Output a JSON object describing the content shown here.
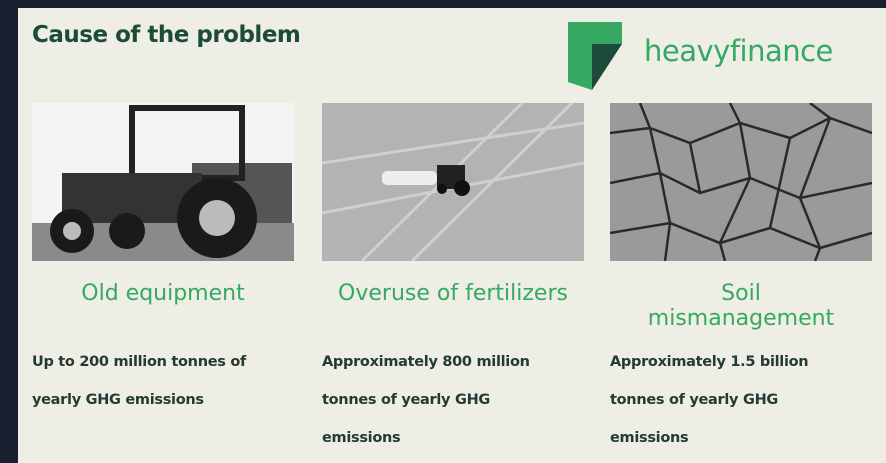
{
  "header": {
    "title": "Cause of the problem",
    "logo": "heavyfinance"
  },
  "columns": [
    {
      "heading": "Old equipment",
      "text": "Up to 200 million tonnes of yearly GHG emissions"
    },
    {
      "heading": "Overuse of fertilizers",
      "text": "Approximately 800 million tonnes of yearly GHG emissions"
    },
    {
      "heading": "Soil mismanagement",
      "text": "Approximately 1.5 billion tonnes of yearly GHG emissions"
    }
  ]
}
